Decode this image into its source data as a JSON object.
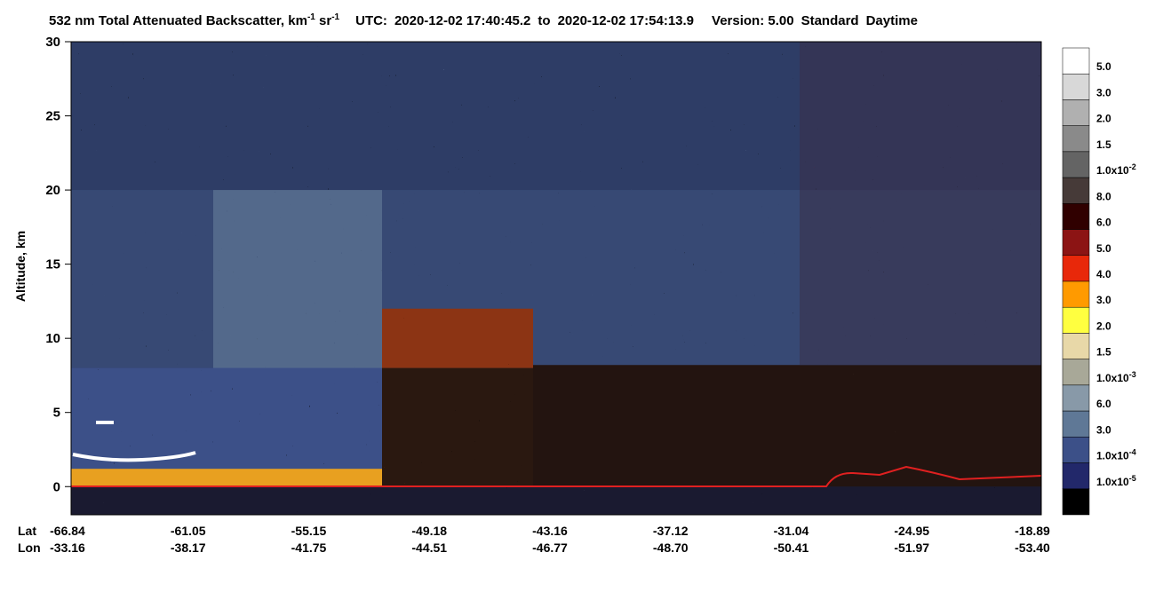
{
  "chart_data": {
    "type": "curtain",
    "title": {
      "main": "532 nm Total Attenuated Backscatter, km",
      "sup1": "-1",
      "mid": " sr",
      "sup2": "-1",
      "utc": "UTC:",
      "start": "2020-12-02 17:40:45.2",
      "to": "to",
      "end": "2020-12-02 17:54:13.9",
      "version": "Version: 5.00",
      "product": "Standard",
      "mode": "Daytime"
    },
    "ylabel": "Altitude, km",
    "ylim": [
      -1.9,
      30
    ],
    "yticks": [
      0,
      5,
      10,
      15,
      20,
      25,
      30
    ],
    "x_rows": [
      "Lat",
      "Lon"
    ],
    "lat": [
      "-66.84",
      "-61.05",
      "-55.15",
      "-49.18",
      "-43.16",
      "-37.12",
      "-31.04",
      "-24.95",
      "-18.89"
    ],
    "lon": [
      "-33.16",
      "-38.17",
      "-41.75",
      "-44.51",
      "-46.77",
      "-48.70",
      "-50.41",
      "-51.97",
      "-53.40"
    ],
    "colorbar": {
      "colors": [
        "#ffffff",
        "#d8d8d8",
        "#b0b0b0",
        "#8a8a8a",
        "#646464",
        "#463a38",
        "#300000",
        "#8c1414",
        "#e8280a",
        "#ff9a00",
        "#ffff40",
        "#e8d8a8",
        "#a8a898",
        "#8899a8",
        "#5f7896",
        "#3c5088",
        "#22286a",
        "#000000"
      ],
      "labels": [
        "5.0",
        "3.0",
        "2.0",
        "1.5",
        {
          "base": "1.0x10",
          "exp": "-2"
        },
        "8.0",
        "6.0",
        "5.0",
        "4.0",
        "3.0",
        "2.0",
        "1.5",
        {
          "base": "1.0x10",
          "exp": "-3"
        },
        "6.0",
        "3.0",
        {
          "base": "1.0x10",
          "exp": "-4"
        },
        {
          "base": "1.0x10",
          "exp": "-5"
        }
      ]
    }
  }
}
